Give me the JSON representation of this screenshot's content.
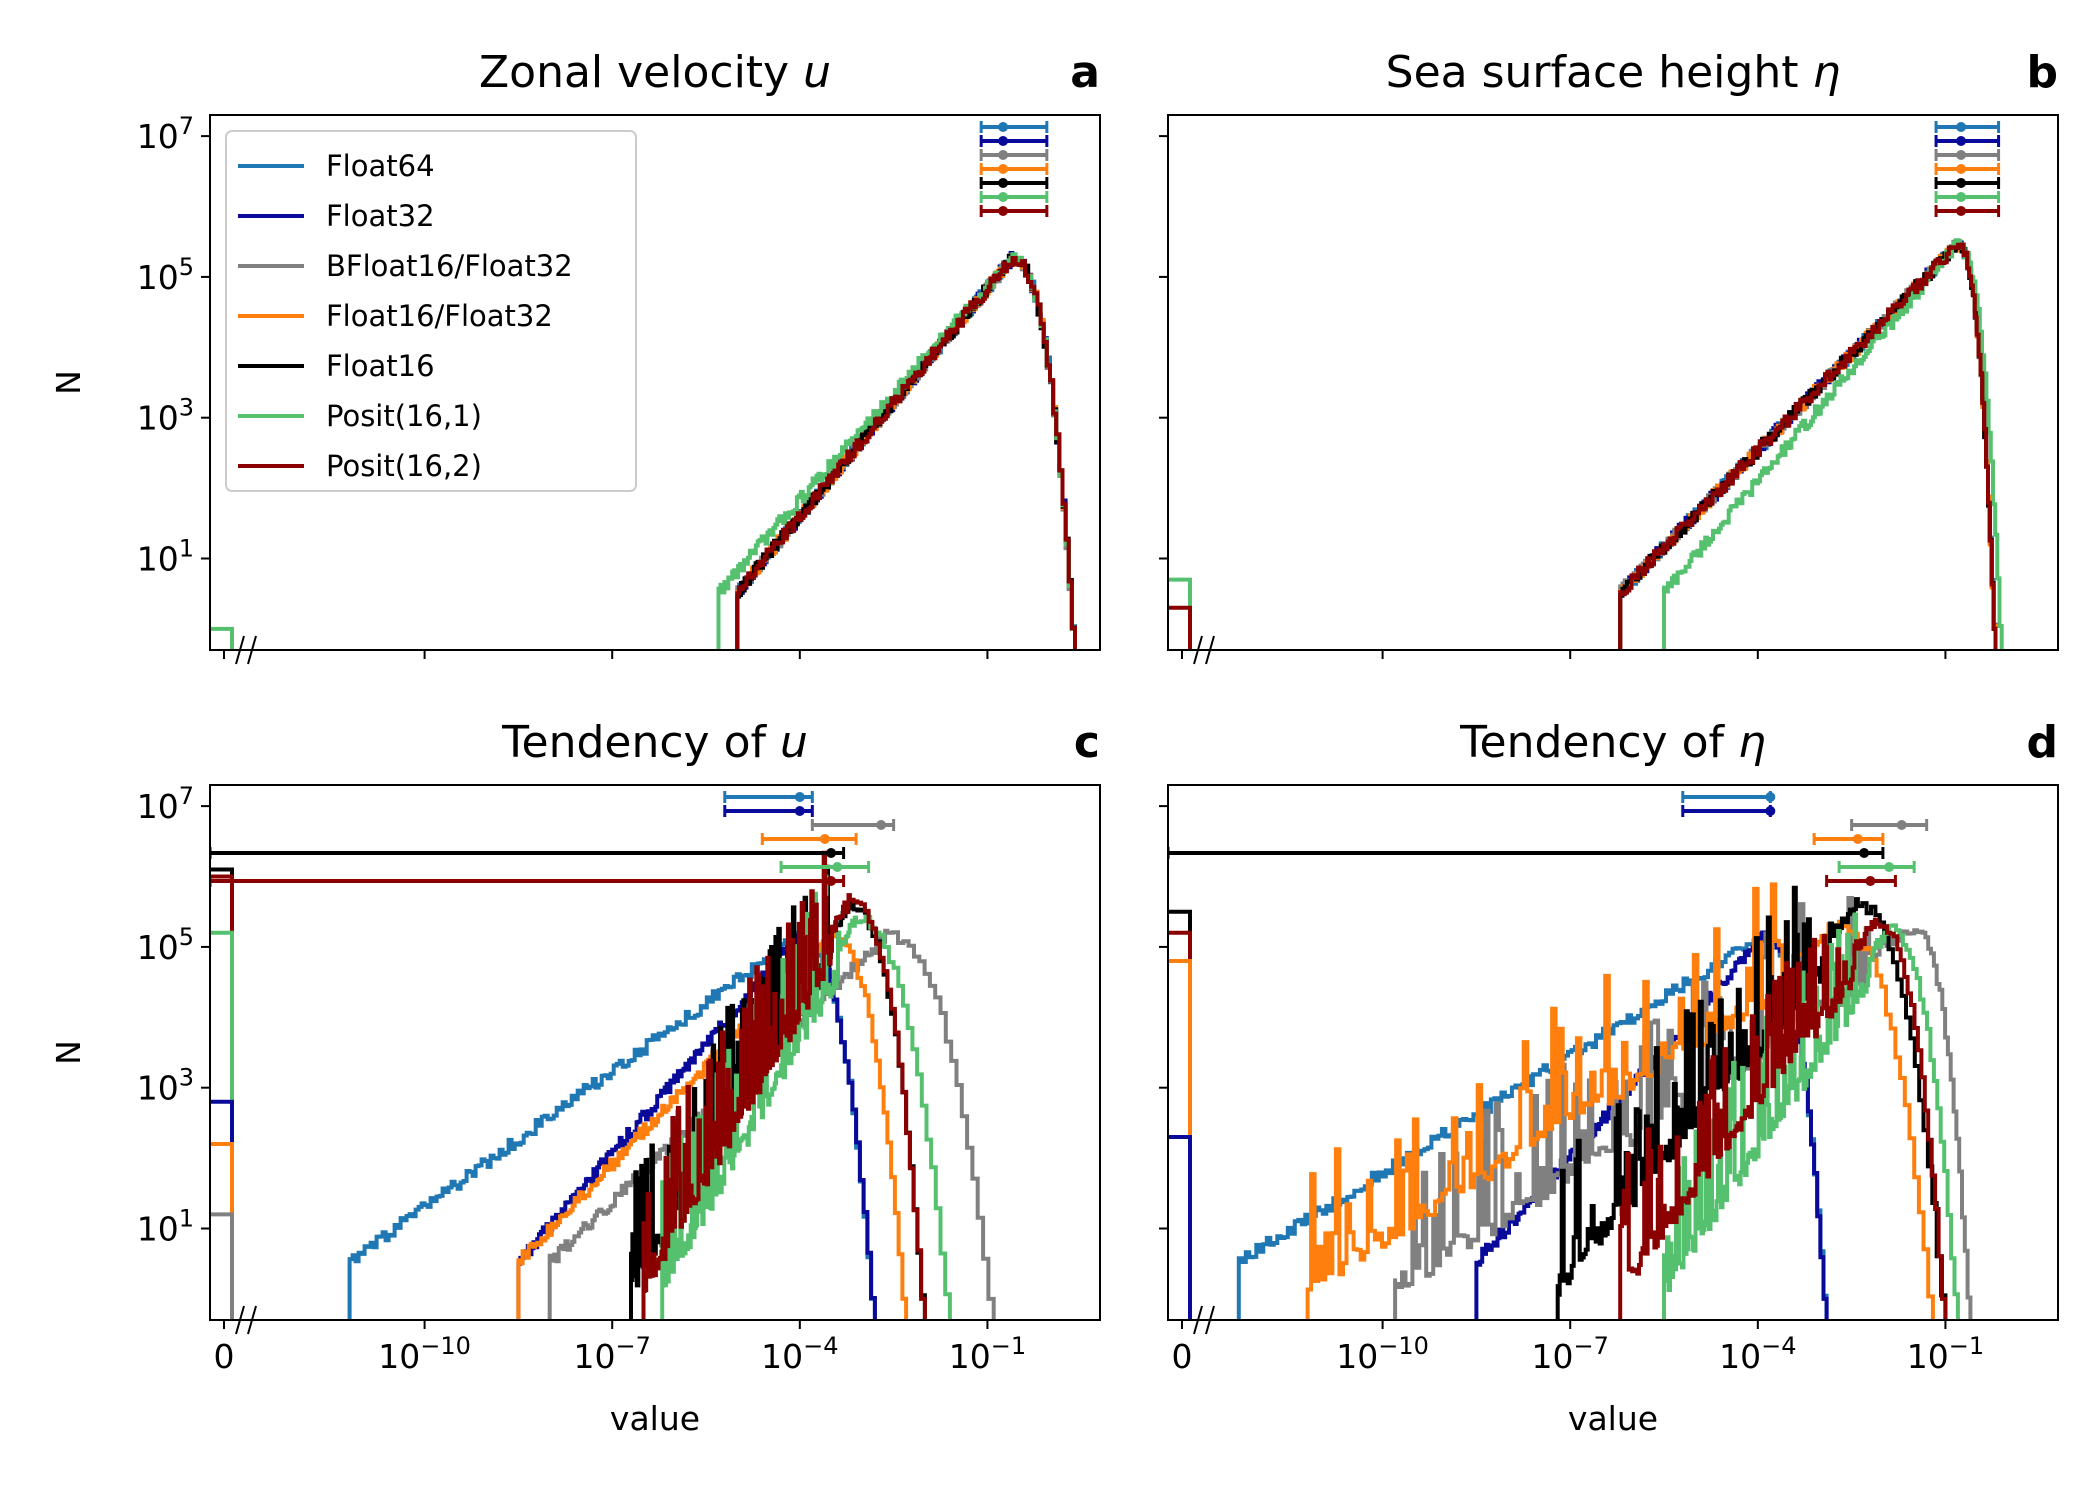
{
  "chart_data": [
    {
      "type": "histogram",
      "letter": "a",
      "title": "Zonal velocity ",
      "title_symbol": "u",
      "ylabel": "N",
      "xlabel": "",
      "show_x_ticklabels": false,
      "show_y_ticklabels": true,
      "legend": true,
      "legend_placement": "top-left",
      "x_scale": "log with zero bin",
      "y_scale": "log",
      "xlim": [
        -13.5,
        0.8
      ],
      "ylim": [
        -0.3,
        7.3
      ],
      "xticks": [
        0,
        -10,
        -7,
        -4,
        -1
      ],
      "yticks": [
        7,
        5,
        3,
        1
      ],
      "zero_bins": [
        {
          "series": "Posit(16,1)",
          "log10_n": 0.0
        }
      ],
      "peak": {
        "log10_x": -0.6,
        "log10_n": 5.25
      },
      "rise": {
        "start_log10_x": -5.0,
        "start_log10_n": 0.5,
        "cutoff_log10_x": 0.4
      },
      "errorbars": [
        {
          "series": "Float64",
          "lo": -1.1,
          "mid": -0.75,
          "hi": -0.05
        },
        {
          "series": "Float32",
          "lo": -1.1,
          "mid": -0.75,
          "hi": -0.05
        },
        {
          "series": "BFloat16/Float32",
          "lo": -1.1,
          "mid": -0.75,
          "hi": -0.05
        },
        {
          "series": "Float16/Float32",
          "lo": -1.1,
          "mid": -0.75,
          "hi": -0.05
        },
        {
          "series": "Float16",
          "lo": -1.1,
          "mid": -0.75,
          "hi": -0.05
        },
        {
          "series": "Posit(16,1)",
          "lo": -1.1,
          "mid": -0.75,
          "hi": -0.05
        },
        {
          "series": "Posit(16,2)",
          "lo": -1.1,
          "mid": -0.75,
          "hi": -0.05
        }
      ],
      "series_curves": [
        {
          "series": "Float64",
          "peak_x": -0.6,
          "peak_n": 5.25,
          "start_x": -5.0,
          "end_x": 0.4
        },
        {
          "series": "Float32",
          "peak_x": -0.6,
          "peak_n": 5.25,
          "start_x": -5.0,
          "end_x": 0.4
        },
        {
          "series": "BFloat16/Float32",
          "peak_x": -0.6,
          "peak_n": 5.25,
          "start_x": -5.0,
          "end_x": 0.4
        },
        {
          "series": "Float16/Float32",
          "peak_x": -0.6,
          "peak_n": 5.25,
          "start_x": -5.0,
          "end_x": 0.4
        },
        {
          "series": "Float16",
          "peak_x": -0.6,
          "peak_n": 5.25,
          "start_x": -5.0,
          "end_x": 0.4
        },
        {
          "series": "Posit(16,1)",
          "peak_x": -0.6,
          "peak_n": 5.25,
          "start_x": -5.3,
          "end_x": 0.4
        },
        {
          "series": "Posit(16,2)",
          "peak_x": -0.6,
          "peak_n": 5.25,
          "start_x": -5.0,
          "end_x": 0.4
        }
      ]
    },
    {
      "type": "histogram",
      "letter": "b",
      "title": "Sea surface height ",
      "title_symbol": "η",
      "ylabel": "",
      "xlabel": "",
      "show_x_ticklabels": false,
      "show_y_ticklabels": false,
      "legend": false,
      "x_scale": "log with zero bin",
      "y_scale": "log",
      "xlim": [
        -13.5,
        0.8
      ],
      "ylim": [
        -0.3,
        7.3
      ],
      "xticks": [
        0,
        -10,
        -7,
        -4,
        -1
      ],
      "yticks": [
        7,
        5,
        3,
        1
      ],
      "zero_bins": [
        {
          "series": "Posit(16,1)",
          "log10_n": 0.7
        },
        {
          "series": "Posit(16,2)",
          "log10_n": 0.3
        }
      ],
      "errorbars": [
        {
          "series": "Float64",
          "lo": -1.15,
          "mid": -0.75,
          "hi": -0.15
        },
        {
          "series": "Float32",
          "lo": -1.15,
          "mid": -0.75,
          "hi": -0.15
        },
        {
          "series": "BFloat16/Float32",
          "lo": -1.15,
          "mid": -0.75,
          "hi": -0.15
        },
        {
          "series": "Float16/Float32",
          "lo": -1.15,
          "mid": -0.75,
          "hi": -0.15
        },
        {
          "series": "Float16",
          "lo": -1.15,
          "mid": -0.75,
          "hi": -0.15
        },
        {
          "series": "Posit(16,1)",
          "lo": -1.15,
          "mid": -0.75,
          "hi": -0.15
        },
        {
          "series": "Posit(16,2)",
          "lo": -1.15,
          "mid": -0.75,
          "hi": -0.15
        }
      ],
      "series_curves": [
        {
          "series": "Float64",
          "peak_x": -0.8,
          "peak_n": 5.45,
          "start_x": -6.2,
          "end_x": -0.2
        },
        {
          "series": "Float32",
          "peak_x": -0.8,
          "peak_n": 5.45,
          "start_x": -6.2,
          "end_x": -0.2
        },
        {
          "series": "BFloat16/Float32",
          "peak_x": -0.8,
          "peak_n": 5.45,
          "start_x": -6.2,
          "end_x": -0.2
        },
        {
          "series": "Float16/Float32",
          "peak_x": -0.8,
          "peak_n": 5.45,
          "start_x": -6.2,
          "end_x": -0.2
        },
        {
          "series": "Float16",
          "peak_x": -0.8,
          "peak_n": 5.45,
          "start_x": -6.2,
          "end_x": -0.2
        },
        {
          "series": "Posit(16,1)",
          "peak_x": -0.8,
          "peak_n": 5.45,
          "start_x": -5.5,
          "end_x": -0.1
        },
        {
          "series": "Posit(16,2)",
          "peak_x": -0.8,
          "peak_n": 5.45,
          "start_x": -6.2,
          "end_x": -0.2
        }
      ]
    },
    {
      "type": "histogram",
      "letter": "c",
      "title": "Tendency of ",
      "title_symbol": "u",
      "ylabel": "N",
      "xlabel": "value",
      "show_x_ticklabels": true,
      "show_y_ticklabels": true,
      "legend": false,
      "x_scale": "log with zero bin",
      "y_scale": "log",
      "xlim": [
        -13.5,
        0.8
      ],
      "ylim": [
        -0.3,
        7.3
      ],
      "xticks": [
        0,
        -10,
        -7,
        -4,
        -1
      ],
      "xtick_labels": [
        "0",
        "10",
        "10",
        "10",
        "10"
      ],
      "xtick_exponents": [
        "",
        "−10",
        "−7",
        "−4",
        "−1"
      ],
      "yticks": [
        7,
        5,
        3,
        1
      ],
      "zero_bins": [
        {
          "series": "Float16",
          "log10_n": 6.1
        },
        {
          "series": "Posit(16,2)",
          "log10_n": 6.0
        },
        {
          "series": "Posit(16,1)",
          "log10_n": 5.2
        },
        {
          "series": "Float32",
          "log10_n": 2.8
        },
        {
          "series": "Float16/Float32",
          "log10_n": 2.2
        },
        {
          "series": "BFloat16/Float32",
          "log10_n": 1.2
        }
      ],
      "errorbars": [
        {
          "series": "Float64",
          "lo": -5.2,
          "mid": -4.0,
          "hi": -3.8
        },
        {
          "series": "Float32",
          "lo": -5.2,
          "mid": -4.0,
          "hi": -3.8
        },
        {
          "series": "BFloat16/Float32",
          "lo": -3.8,
          "mid": -2.7,
          "hi": -2.5
        },
        {
          "series": "Float16/Float32",
          "lo": -4.6,
          "mid": -3.6,
          "hi": -3.1
        },
        {
          "series": "Float16",
          "lo": -13.5,
          "mid": -3.5,
          "hi": -3.3
        },
        {
          "series": "Posit(16,1)",
          "lo": -4.3,
          "mid": -3.4,
          "hi": -2.9
        },
        {
          "series": "Posit(16,2)",
          "lo": -13.5,
          "mid": -3.5,
          "hi": -3.3
        }
      ],
      "series_curves": [
        {
          "series": "Float64",
          "start_x": -11.2,
          "start_n": 0.5,
          "peak_x": -4.0,
          "peak_n": 5.15,
          "end_x": -2.8,
          "spiky": false
        },
        {
          "series": "Float32",
          "start_x": -8.5,
          "start_n": 0.5,
          "peak_x": -4.0,
          "peak_n": 5.15,
          "end_x": -2.8,
          "spiky": false
        },
        {
          "series": "BFloat16/Float32",
          "start_x": -8.0,
          "start_n": 0.5,
          "peak_x": -2.6,
          "peak_n": 5.15,
          "end_x": -0.9,
          "spiky": false
        },
        {
          "series": "Float16/Float32",
          "start_x": -8.5,
          "start_n": 0.5,
          "peak_x": -3.5,
          "peak_n": 5.15,
          "end_x": -2.3,
          "spiky": false
        },
        {
          "series": "Float16",
          "start_x": -6.7,
          "start_n": 0.5,
          "peak_x": -3.2,
          "peak_n": 5.6,
          "end_x": -2.0,
          "spiky": true
        },
        {
          "series": "Posit(16,1)",
          "start_x": -6.2,
          "start_n": 0.5,
          "peak_x": -3.1,
          "peak_n": 5.4,
          "end_x": -1.6,
          "spiky": true
        },
        {
          "series": "Posit(16,2)",
          "start_x": -6.5,
          "start_n": 0.5,
          "peak_x": -3.2,
          "peak_n": 5.65,
          "end_x": -2.0,
          "spiky": true
        }
      ]
    },
    {
      "type": "histogram",
      "letter": "d",
      "title": "Tendency of ",
      "title_symbol": "η",
      "ylabel": "",
      "xlabel": "value",
      "show_x_ticklabels": true,
      "show_y_ticklabels": false,
      "legend": false,
      "x_scale": "log with zero bin",
      "y_scale": "log",
      "xlim": [
        -13.5,
        0.8
      ],
      "ylim": [
        -0.3,
        7.3
      ],
      "xticks": [
        0,
        -10,
        -7,
        -4,
        -1
      ],
      "xtick_labels": [
        "0",
        "10",
        "10",
        "10",
        "10"
      ],
      "xtick_exponents": [
        "",
        "−10",
        "−7",
        "−4",
        "−1"
      ],
      "yticks": [
        7,
        5,
        3,
        1
      ],
      "zero_bins": [
        {
          "series": "Float16",
          "log10_n": 5.5
        },
        {
          "series": "Posit(16,2)",
          "log10_n": 5.2
        },
        {
          "series": "Float16/Float32",
          "log10_n": 4.8
        },
        {
          "series": "Float32",
          "log10_n": 2.3
        }
      ],
      "errorbars": [
        {
          "series": "Float64",
          "lo": -5.2,
          "mid": -3.8,
          "hi": -3.8
        },
        {
          "series": "Float32",
          "lo": -5.2,
          "mid": -3.8,
          "hi": -3.8
        },
        {
          "series": "BFloat16/Float32",
          "lo": -2.5,
          "mid": -1.7,
          "hi": -1.3
        },
        {
          "series": "Float16/Float32",
          "lo": -3.1,
          "mid": -2.4,
          "hi": -2.0
        },
        {
          "series": "Float16",
          "lo": -13.5,
          "mid": -2.3,
          "hi": -2.0
        },
        {
          "series": "Posit(16,1)",
          "lo": -2.7,
          "mid": -1.9,
          "hi": -1.5
        },
        {
          "series": "Posit(16,2)",
          "lo": -2.9,
          "mid": -2.2,
          "hi": -1.8
        }
      ],
      "series_curves": [
        {
          "series": "Float64",
          "start_x": -12.3,
          "start_n": 0.5,
          "peak_x": -3.9,
          "peak_n": 5.15,
          "end_x": -2.9,
          "spiky": false
        },
        {
          "series": "Float32",
          "start_x": -8.5,
          "start_n": 0.5,
          "peak_x": -3.9,
          "peak_n": 5.15,
          "end_x": -2.9,
          "spiky": false
        },
        {
          "series": "BFloat16/Float32",
          "start_x": -9.8,
          "start_n": 0.5,
          "peak_x": -1.5,
          "peak_n": 5.25,
          "end_x": -0.6,
          "spiky": true
        },
        {
          "series": "Float16/Float32",
          "start_x": -11.2,
          "start_n": 0.5,
          "peak_x": -2.7,
          "peak_n": 5.3,
          "end_x": -1.2,
          "spiky": true
        },
        {
          "series": "Float16",
          "start_x": -7.2,
          "start_n": 0.5,
          "peak_x": -2.4,
          "peak_n": 5.6,
          "end_x": -1.0,
          "spiky": true
        },
        {
          "series": "Posit(16,1)",
          "start_x": -5.5,
          "start_n": 0.5,
          "peak_x": -1.9,
          "peak_n": 5.25,
          "end_x": -0.8,
          "spiky": true
        },
        {
          "series": "Posit(16,2)",
          "start_x": -6.2,
          "start_n": 0.5,
          "peak_x": -2.1,
          "peak_n": 5.35,
          "end_x": -1.0,
          "spiky": true
        }
      ]
    }
  ],
  "legend": {
    "entries": [
      {
        "label": "Float64",
        "color": "#1f77b4"
      },
      {
        "label": "Float32",
        "color": "#0a0a9a"
      },
      {
        "label": "BFloat16/Float32",
        "color": "#808080"
      },
      {
        "label": "Float16/Float32",
        "color": "#ff7f0e"
      },
      {
        "label": "Float16",
        "color": "#000000"
      },
      {
        "label": "Posit(16,1)",
        "color": "#55c16f"
      },
      {
        "label": "Posit(16,2)",
        "color": "#8b0000"
      }
    ]
  }
}
